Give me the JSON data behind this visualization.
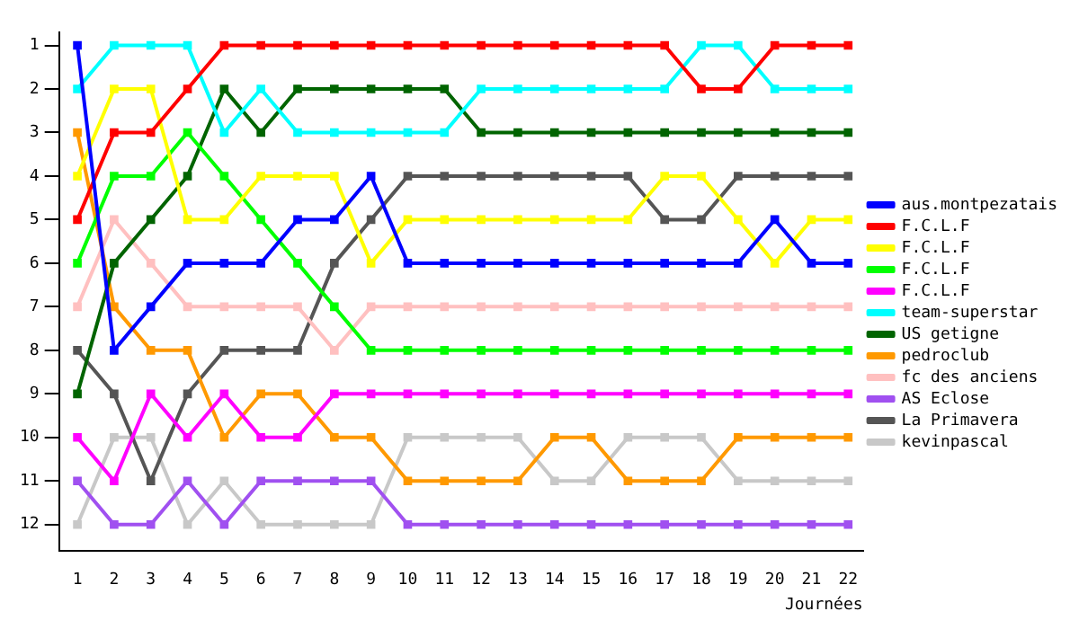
{
  "chart_data": {
    "type": "line",
    "xlabel": "Journées",
    "x": [
      1,
      2,
      3,
      4,
      5,
      6,
      7,
      8,
      9,
      10,
      11,
      12,
      13,
      14,
      15,
      16,
      17,
      18,
      19,
      20,
      21,
      22
    ],
    "xlim": [
      0.5,
      22.4
    ],
    "xticks": [
      1,
      2,
      3,
      4,
      5,
      6,
      7,
      8,
      9,
      10,
      11,
      12,
      13,
      14,
      15,
      16,
      17,
      18,
      19,
      20,
      21,
      22
    ],
    "ylim": [
      12.6,
      0.7
    ],
    "yticks": [
      1,
      2,
      3,
      4,
      5,
      6,
      7,
      8,
      9,
      10,
      11,
      12
    ],
    "grid": false,
    "legend": "right",
    "marker": "square",
    "line_style": "solid",
    "series": [
      {
        "name": "aus.montpezatais",
        "color": "#0000ff",
        "values": [
          1,
          8,
          7,
          6,
          6,
          6,
          5,
          5,
          4,
          6,
          6,
          6,
          6,
          6,
          6,
          6,
          6,
          6,
          6,
          5,
          6,
          6
        ]
      },
      {
        "name": "F.C.L.F",
        "color": "#ff0000",
        "values": [
          5,
          3,
          3,
          2,
          1,
          1,
          1,
          1,
          1,
          1,
          1,
          1,
          1,
          1,
          1,
          1,
          1,
          2,
          2,
          1,
          1,
          1
        ]
      },
      {
        "name": "F.C.L.F",
        "color": "#ffff00",
        "values": [
          4,
          2,
          2,
          5,
          5,
          4,
          4,
          4,
          6,
          5,
          5,
          5,
          5,
          5,
          5,
          5,
          4,
          4,
          5,
          6,
          5,
          5
        ]
      },
      {
        "name": "F.C.L.F",
        "color": "#00ff00",
        "values": [
          6,
          4,
          4,
          3,
          4,
          5,
          6,
          7,
          8,
          8,
          8,
          8,
          8,
          8,
          8,
          8,
          8,
          8,
          8,
          8,
          8,
          8
        ]
      },
      {
        "name": "F.C.L.F",
        "color": "#ff00ff",
        "values": [
          10,
          11,
          9,
          10,
          9,
          10,
          10,
          9,
          9,
          9,
          9,
          9,
          9,
          9,
          9,
          9,
          9,
          9,
          9,
          9,
          9,
          9
        ]
      },
      {
        "name": "team-superstar",
        "color": "#00ffff",
        "values": [
          2,
          1,
          1,
          1,
          3,
          2,
          3,
          3,
          3,
          3,
          3,
          2,
          2,
          2,
          2,
          2,
          2,
          1,
          1,
          2,
          2,
          2
        ]
      },
      {
        "name": "US getigne",
        "color": "#006400",
        "values": [
          9,
          6,
          5,
          4,
          2,
          3,
          2,
          2,
          2,
          2,
          2,
          3,
          3,
          3,
          3,
          3,
          3,
          3,
          3,
          3,
          3,
          3
        ]
      },
      {
        "name": "pedroclub",
        "color": "#ff9900",
        "values": [
          3,
          7,
          8,
          8,
          10,
          9,
          9,
          10,
          10,
          11,
          11,
          11,
          11,
          10,
          10,
          11,
          11,
          11,
          10,
          10,
          10,
          10
        ]
      },
      {
        "name": "fc des anciens",
        "color": "#ffc0c0",
        "values": [
          7,
          5,
          6,
          7,
          7,
          7,
          7,
          8,
          7,
          7,
          7,
          7,
          7,
          7,
          7,
          7,
          7,
          7,
          7,
          7,
          7,
          7
        ]
      },
      {
        "name": "AS Eclose",
        "color": "#a050f0",
        "values": [
          11,
          12,
          12,
          11,
          12,
          11,
          11,
          11,
          11,
          12,
          12,
          12,
          12,
          12,
          12,
          12,
          12,
          12,
          12,
          12,
          12,
          12
        ]
      },
      {
        "name": "La Primavera",
        "color": "#555555",
        "values": [
          8,
          9,
          11,
          9,
          8,
          8,
          8,
          6,
          5,
          4,
          4,
          4,
          4,
          4,
          4,
          4,
          5,
          5,
          4,
          4,
          4,
          4
        ]
      },
      {
        "name": "kevinpascal",
        "color": "#c8c8c8",
        "values": [
          12,
          10,
          10,
          12,
          11,
          12,
          12,
          12,
          12,
          10,
          10,
          10,
          10,
          11,
          11,
          10,
          10,
          10,
          11,
          11,
          11,
          11
        ]
      }
    ]
  }
}
